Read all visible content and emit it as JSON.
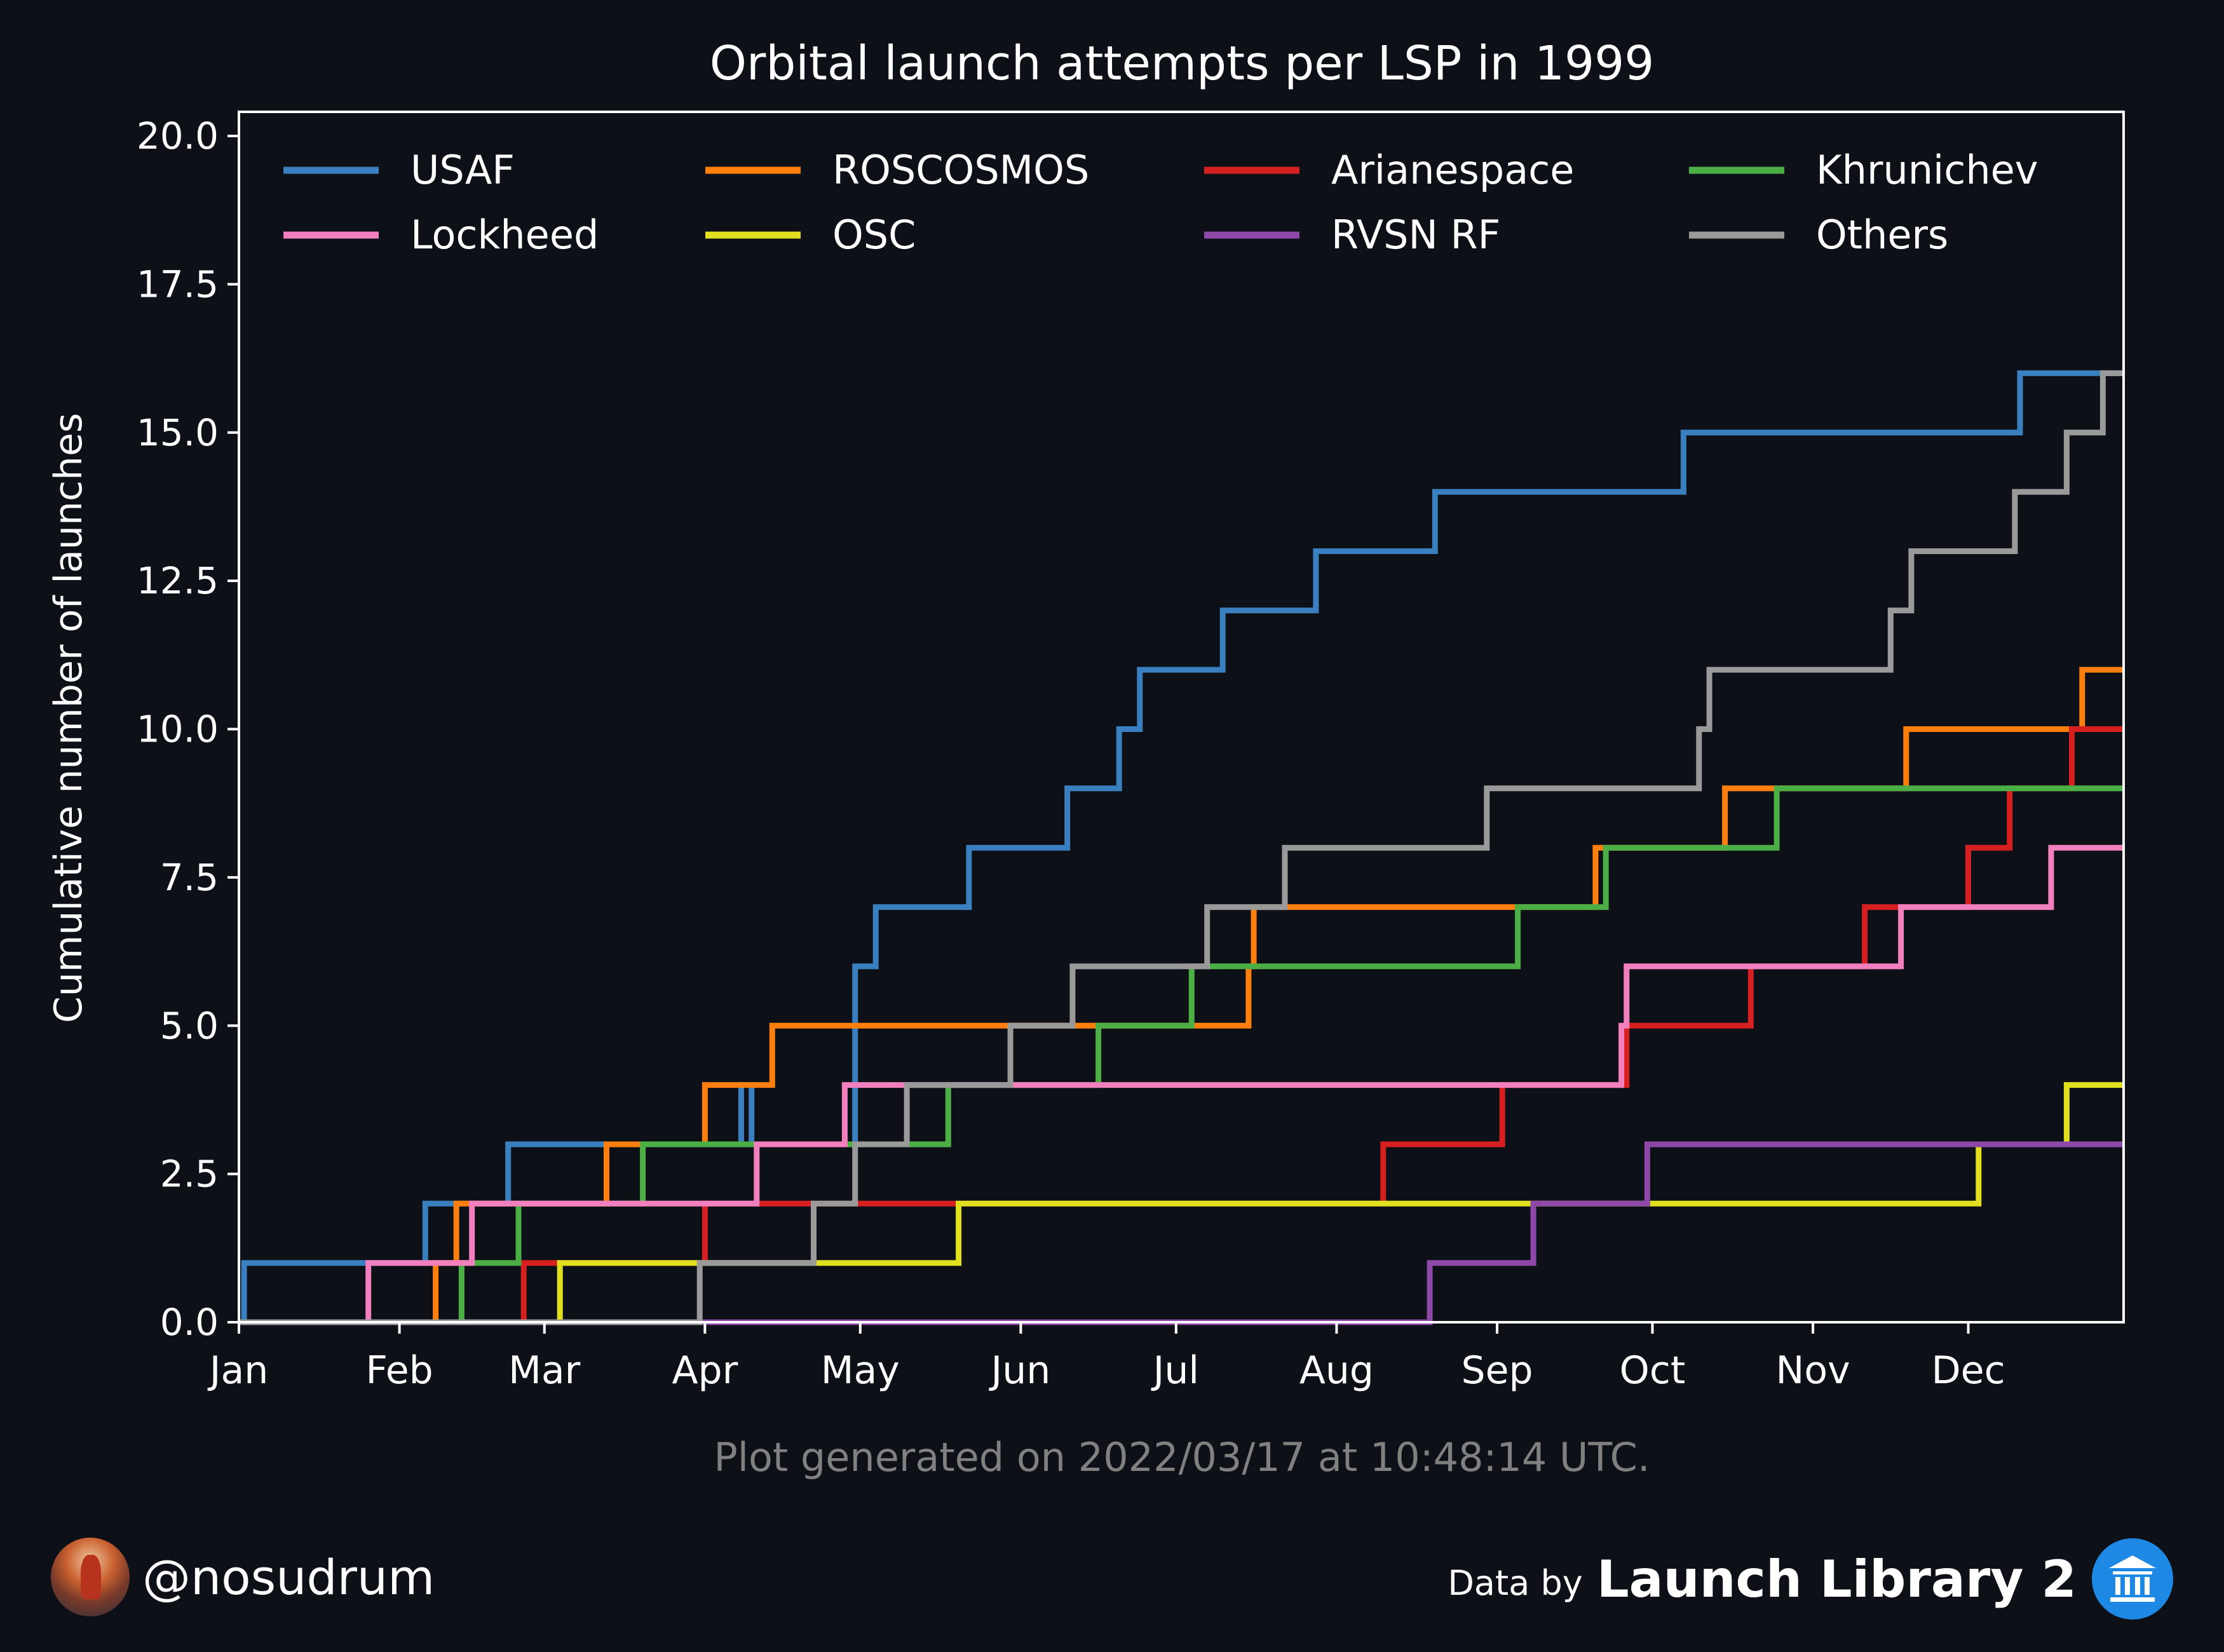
{
  "chart_data": {
    "type": "line",
    "step": true,
    "title": "Orbital launch attempts per LSP in 1999",
    "xlabel": "",
    "ylabel": "Cumulative number of launches",
    "xlim": [
      "1999-01-01",
      "1999-12-31"
    ],
    "ylim": [
      0,
      20
    ],
    "x_tick_labels": [
      "Jan",
      "Feb",
      "Mar",
      "Apr",
      "May",
      "Jun",
      "Jul",
      "Aug",
      "Sep",
      "Oct",
      "Nov",
      "Dec"
    ],
    "x_tick_dates": [
      "1999-01-01",
      "1999-02-01",
      "1999-03-01",
      "1999-04-01",
      "1999-05-01",
      "1999-06-01",
      "1999-07-01",
      "1999-08-01",
      "1999-09-01",
      "1999-10-01",
      "1999-11-01",
      "1999-12-01"
    ],
    "y_ticks": [
      0,
      2.5,
      5,
      7.5,
      10,
      12.5,
      15,
      17.5,
      20
    ],
    "y_tick_labels": [
      "0.0",
      "2.5",
      "5.0",
      "7.5",
      "10.0",
      "12.5",
      "15.0",
      "17.5",
      "20.0"
    ],
    "grid": false,
    "legend_position": "top",
    "series": [
      {
        "name": "USAF",
        "color": "#3a7fbf",
        "steps": [
          [
            "1999-01-02",
            1
          ],
          [
            "1999-02-06",
            2
          ],
          [
            "1999-02-22",
            3
          ],
          [
            "1999-04-08",
            4
          ],
          [
            "1999-04-10",
            3
          ],
          [
            "1999-04-30",
            6
          ],
          [
            "1999-05-04",
            7
          ],
          [
            "1999-05-22",
            8
          ],
          [
            "1999-06-10",
            9
          ],
          [
            "1999-06-20",
            10
          ],
          [
            "1999-06-24",
            11
          ],
          [
            "1999-07-10",
            12
          ],
          [
            "1999-07-28",
            13
          ],
          [
            "1999-08-20",
            14
          ],
          [
            "1999-10-07",
            15
          ],
          [
            "1999-12-11",
            16
          ]
        ]
      },
      {
        "name": "ROSCOSMOS",
        "color": "#ff7f0e",
        "steps": [
          [
            "1999-02-08",
            1
          ],
          [
            "1999-02-12",
            2
          ],
          [
            "1999-03-13",
            3
          ],
          [
            "1999-04-01",
            4
          ],
          [
            "1999-04-14",
            5
          ],
          [
            "1999-07-15",
            6
          ],
          [
            "1999-07-16",
            7
          ],
          [
            "1999-09-20",
            8
          ],
          [
            "1999-10-15",
            9
          ],
          [
            "1999-11-19",
            10
          ],
          [
            "1999-12-23",
            11
          ]
        ]
      },
      {
        "name": "Arianespace",
        "color": "#d62020",
        "steps": [
          [
            "1999-02-25",
            1
          ],
          [
            "1999-04-01",
            2
          ],
          [
            "1999-05-15",
            2
          ],
          [
            "1999-08-10",
            3
          ],
          [
            "1999-09-02",
            4
          ],
          [
            "1999-09-26",
            5
          ],
          [
            "1999-10-20",
            6
          ],
          [
            "1999-11-11",
            7
          ],
          [
            "1999-12-01",
            8
          ],
          [
            "1999-12-09",
            9
          ],
          [
            "1999-12-21",
            10
          ]
        ]
      },
      {
        "name": "Khrunichev",
        "color": "#4caf45",
        "steps": [
          [
            "1999-02-13",
            1
          ],
          [
            "1999-02-24",
            2
          ],
          [
            "1999-03-20",
            3
          ],
          [
            "1999-05-18",
            4
          ],
          [
            "1999-06-16",
            5
          ],
          [
            "1999-07-04",
            6
          ],
          [
            "1999-09-05",
            7
          ],
          [
            "1999-09-22",
            8
          ],
          [
            "1999-10-25",
            9
          ]
        ]
      },
      {
        "name": "Lockheed",
        "color": "#f27fbe",
        "steps": [
          [
            "1999-01-26",
            1
          ],
          [
            "1999-02-15",
            2
          ],
          [
            "1999-04-11",
            3
          ],
          [
            "1999-04-28",
            4
          ],
          [
            "1999-09-25",
            5
          ],
          [
            "1999-09-26",
            6
          ],
          [
            "1999-11-18",
            7
          ],
          [
            "1999-12-17",
            8
          ]
        ]
      },
      {
        "name": "OSC",
        "color": "#e0e01e",
        "steps": [
          [
            "1999-03-04",
            1
          ],
          [
            "1999-05-20",
            2
          ],
          [
            "1999-12-03",
            3
          ],
          [
            "1999-12-20",
            4
          ]
        ]
      },
      {
        "name": "RVSN RF",
        "color": "#8e48a8",
        "steps": [
          [
            "1999-08-19",
            1
          ],
          [
            "1999-09-08",
            2
          ],
          [
            "1999-09-30",
            3
          ]
        ]
      },
      {
        "name": "Others",
        "color": "#9a9a9a",
        "steps": [
          [
            "1999-03-31",
            1
          ],
          [
            "1999-04-22",
            2
          ],
          [
            "1999-04-30",
            3
          ],
          [
            "1999-05-10",
            4
          ],
          [
            "1999-05-30",
            5
          ],
          [
            "1999-06-11",
            6
          ],
          [
            "1999-07-07",
            7
          ],
          [
            "1999-07-22",
            8
          ],
          [
            "1999-08-30",
            9
          ],
          [
            "1999-10-10",
            10
          ],
          [
            "1999-10-12",
            11
          ],
          [
            "1999-11-16",
            12
          ],
          [
            "1999-11-20",
            13
          ],
          [
            "1999-12-10",
            14
          ],
          [
            "1999-12-20",
            15
          ],
          [
            "1999-12-27",
            16
          ]
        ]
      }
    ],
    "annotation": "Plot generated on 2022/03/17 at 10:48:14 UTC."
  },
  "footer": {
    "handle": "@nosudrum",
    "data_by": "Data by",
    "source": "Launch Library 2"
  },
  "icons": {
    "avatar": "astronaut-avatar",
    "logo": "museum-icon"
  }
}
